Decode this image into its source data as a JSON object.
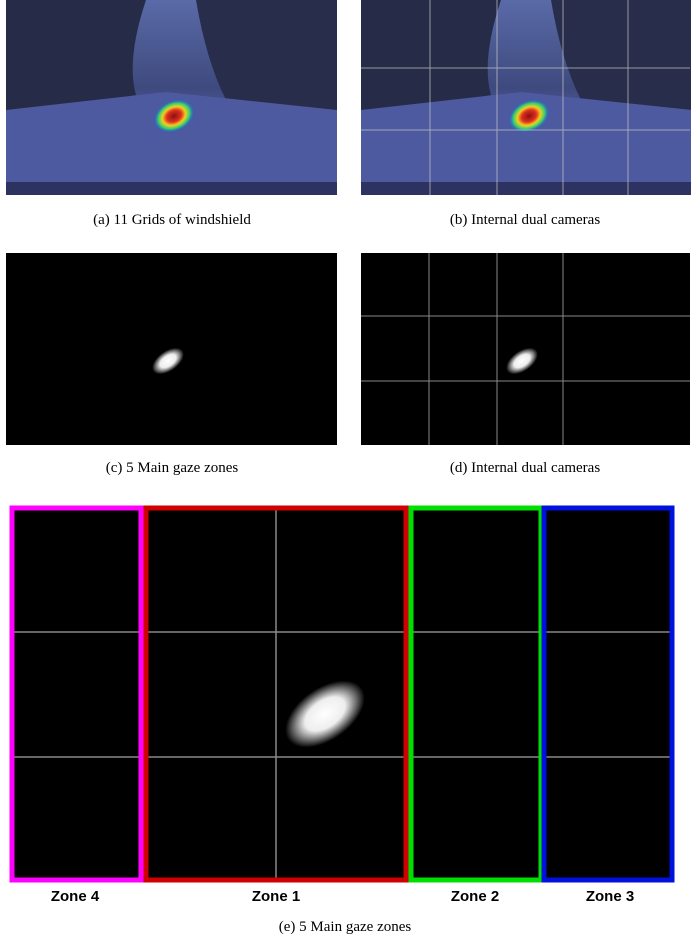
{
  "figure": {
    "captions": [
      "(a) 11 Grids of windshield",
      "(b) Internal dual cameras",
      "(c) 5 Main gaze zones",
      "(d) Internal dual cameras",
      "(e) 5 Main gaze zones"
    ],
    "zones": [
      "Zone 4",
      "Zone 1",
      "Zone 2",
      "Zone 3"
    ]
  }
}
